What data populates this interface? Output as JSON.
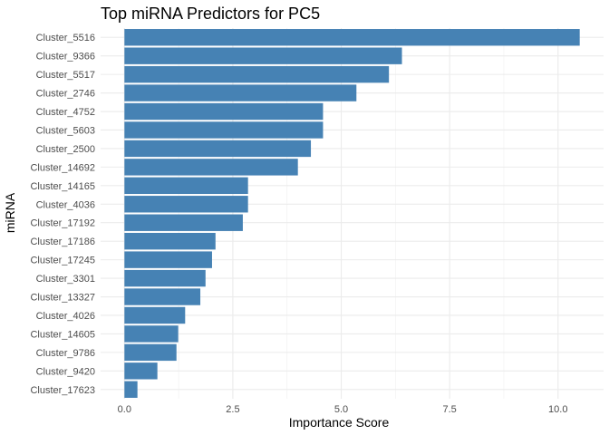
{
  "chart_data": {
    "type": "bar",
    "orientation": "horizontal",
    "title": "Top miRNA Predictors for PC5",
    "xlabel": "Importance Score",
    "ylabel": "miRNA",
    "xlim": [
      -0.55,
      11.05
    ],
    "xticks": [
      0.0,
      2.5,
      5.0,
      7.5,
      10.0
    ],
    "xtick_labels": [
      "0.0",
      "2.5",
      "5.0",
      "7.5",
      "10.0"
    ],
    "grid": true,
    "legend": "none",
    "bar_color": "#4682B4",
    "categories": [
      "Cluster_5516",
      "Cluster_9366",
      "Cluster_5517",
      "Cluster_2746",
      "Cluster_4752",
      "Cluster_5603",
      "Cluster_2500",
      "Cluster_14692",
      "Cluster_14165",
      "Cluster_4036",
      "Cluster_17192",
      "Cluster_17186",
      "Cluster_17245",
      "Cluster_3301",
      "Cluster_13327",
      "Cluster_4026",
      "Cluster_14605",
      "Cluster_9786",
      "Cluster_9420",
      "Cluster_17623"
    ],
    "values": [
      10.5,
      6.4,
      6.1,
      5.35,
      4.58,
      4.58,
      4.3,
      4.0,
      2.85,
      2.85,
      2.73,
      2.1,
      2.02,
      1.87,
      1.75,
      1.4,
      1.24,
      1.2,
      0.76,
      0.3
    ]
  }
}
